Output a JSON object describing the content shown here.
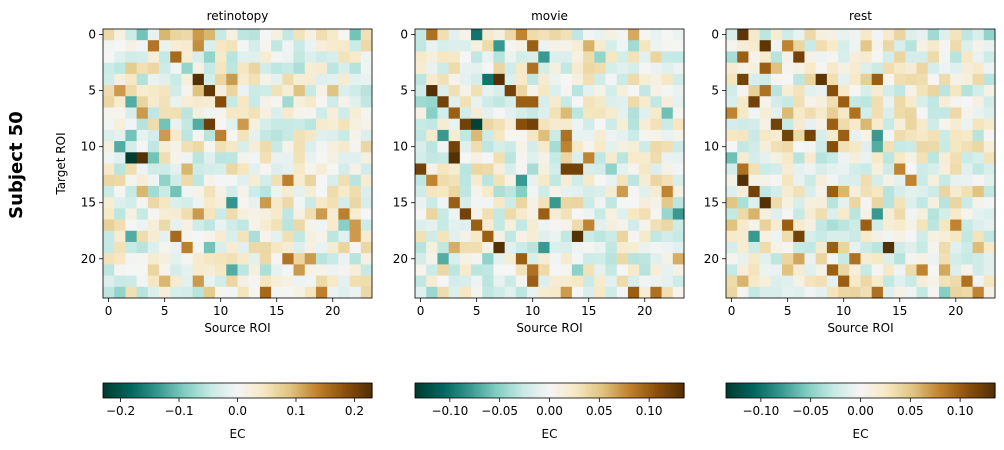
{
  "figure": {
    "row_label": "Subject 50"
  },
  "chart_data": [
    {
      "type": "heatmap",
      "title": "retinotopy",
      "xlabel": "Source ROI",
      "ylabel": "Target ROI",
      "size": 24,
      "xticks": [
        0,
        5,
        10,
        15,
        20
      ],
      "yticks": [
        0,
        5,
        10,
        15,
        20
      ],
      "colorbar": {
        "label": "EC",
        "vmin": -0.23,
        "vmax": 0.23,
        "ticks": [
          -0.2,
          -0.1,
          0.0,
          0.1,
          0.2
        ],
        "tick_labels": [
          "−0.2",
          "−0.1",
          "0.0",
          "0.1",
          "0.2"
        ]
      },
      "seed": 50101,
      "amplitude": 0.23,
      "cells": [
        {
          "r": 0,
          "c": 3,
          "v": -0.1
        },
        {
          "r": 0,
          "c": 5,
          "v": 0.1
        },
        {
          "r": 0,
          "c": 8,
          "v": 0.12
        },
        {
          "r": 0,
          "c": 9,
          "v": 0.1
        },
        {
          "r": 0,
          "c": 22,
          "v": -0.1
        },
        {
          "r": 1,
          "c": 4,
          "v": 0.15
        },
        {
          "r": 1,
          "c": 8,
          "v": 0.13
        },
        {
          "r": 2,
          "c": 6,
          "v": 0.16
        },
        {
          "r": 2,
          "c": 9,
          "v": -0.08
        },
        {
          "r": 3,
          "c": 2,
          "v": 0.08
        },
        {
          "r": 3,
          "c": 7,
          "v": -0.08
        },
        {
          "r": 4,
          "c": 8,
          "v": 0.23
        },
        {
          "r": 4,
          "c": 11,
          "v": 0.12
        },
        {
          "r": 5,
          "c": 1,
          "v": 0.12
        },
        {
          "r": 5,
          "c": 9,
          "v": 0.22
        },
        {
          "r": 5,
          "c": 0,
          "v": 0.06
        },
        {
          "r": 6,
          "c": 2,
          "v": -0.12
        },
        {
          "r": 6,
          "c": 10,
          "v": 0.19
        },
        {
          "r": 7,
          "c": 3,
          "v": 0.12
        },
        {
          "r": 8,
          "c": 5,
          "v": -0.1
        },
        {
          "r": 8,
          "c": 9,
          "v": 0.21
        },
        {
          "r": 8,
          "c": 8,
          "v": -0.12
        },
        {
          "r": 8,
          "c": 12,
          "v": 0.12
        },
        {
          "r": 9,
          "c": 2,
          "v": -0.1
        },
        {
          "r": 9,
          "c": 5,
          "v": 0.12
        },
        {
          "r": 9,
          "c": 10,
          "v": 0.14
        },
        {
          "r": 10,
          "c": 1,
          "v": -0.12
        },
        {
          "r": 11,
          "c": 2,
          "v": -0.23
        },
        {
          "r": 11,
          "c": 3,
          "v": 0.23
        },
        {
          "r": 11,
          "c": 4,
          "v": -0.1
        },
        {
          "r": 12,
          "c": 7,
          "v": 0.1
        },
        {
          "r": 13,
          "c": 16,
          "v": 0.14
        },
        {
          "r": 14,
          "c": 3,
          "v": 0.1
        },
        {
          "r": 14,
          "c": 6,
          "v": -0.1
        },
        {
          "r": 15,
          "c": 11,
          "v": -0.14
        },
        {
          "r": 15,
          "c": 14,
          "v": 0.12
        },
        {
          "r": 16,
          "c": 8,
          "v": 0.12
        },
        {
          "r": 16,
          "c": 19,
          "v": 0.12
        },
        {
          "r": 16,
          "c": 21,
          "v": 0.14
        },
        {
          "r": 17,
          "c": 22,
          "v": 0.12
        },
        {
          "r": 18,
          "c": 2,
          "v": -0.12
        },
        {
          "r": 18,
          "c": 6,
          "v": 0.16
        },
        {
          "r": 18,
          "c": 22,
          "v": 0.12
        },
        {
          "r": 19,
          "c": 7,
          "v": 0.14
        },
        {
          "r": 19,
          "c": 9,
          "v": -0.1
        },
        {
          "r": 20,
          "c": 16,
          "v": 0.15
        },
        {
          "r": 20,
          "c": 18,
          "v": 0.12
        },
        {
          "r": 21,
          "c": 11,
          "v": -0.12
        },
        {
          "r": 21,
          "c": 17,
          "v": 0.12
        },
        {
          "r": 22,
          "c": 5,
          "v": 0.1
        },
        {
          "r": 22,
          "c": 8,
          "v": 0.12
        },
        {
          "r": 23,
          "c": 14,
          "v": 0.16
        },
        {
          "r": 23,
          "c": 19,
          "v": 0.14
        },
        {
          "r": 23,
          "c": 1,
          "v": -0.08
        }
      ]
    },
    {
      "type": "heatmap",
      "title": "movie",
      "xlabel": "Source ROI",
      "ylabel": "",
      "size": 24,
      "xticks": [
        0,
        5,
        10,
        15,
        20
      ],
      "yticks": [
        0,
        5,
        10,
        15,
        20
      ],
      "colorbar": {
        "label": "EC",
        "vmin": -0.135,
        "vmax": 0.135,
        "ticks": [
          -0.1,
          -0.05,
          0.0,
          0.05,
          0.1
        ],
        "tick_labels": [
          "−0.10",
          "−0.05",
          "0.00",
          "0.05",
          "0.10"
        ]
      },
      "seed": 50202,
      "amplitude": 0.135,
      "cells": [
        {
          "r": 0,
          "c": 1,
          "v": 0.09
        },
        {
          "r": 0,
          "c": 5,
          "v": -0.1
        },
        {
          "r": 0,
          "c": 9,
          "v": 0.08
        },
        {
          "r": 1,
          "c": 7,
          "v": -0.08
        },
        {
          "r": 1,
          "c": 10,
          "v": 0.1
        },
        {
          "r": 2,
          "c": 11,
          "v": -0.08
        },
        {
          "r": 3,
          "c": 10,
          "v": 0.09
        },
        {
          "r": 4,
          "c": 6,
          "v": -0.1
        },
        {
          "r": 4,
          "c": 7,
          "v": 0.135
        },
        {
          "r": 5,
          "c": 1,
          "v": 0.135
        },
        {
          "r": 5,
          "c": 8,
          "v": 0.12
        },
        {
          "r": 6,
          "c": 2,
          "v": 0.12
        },
        {
          "r": 6,
          "c": 9,
          "v": 0.1
        },
        {
          "r": 6,
          "c": 10,
          "v": 0.1
        },
        {
          "r": 7,
          "c": 3,
          "v": 0.1
        },
        {
          "r": 7,
          "c": 22,
          "v": -0.06
        },
        {
          "r": 8,
          "c": 4,
          "v": 0.12
        },
        {
          "r": 8,
          "c": 5,
          "v": -0.13
        },
        {
          "r": 8,
          "c": 9,
          "v": 0.11
        },
        {
          "r": 8,
          "c": 10,
          "v": 0.12
        },
        {
          "r": 9,
          "c": 2,
          "v": -0.08
        },
        {
          "r": 9,
          "c": 13,
          "v": 0.09
        },
        {
          "r": 10,
          "c": 3,
          "v": 0.12
        },
        {
          "r": 10,
          "c": 13,
          "v": 0.08
        },
        {
          "r": 11,
          "c": 3,
          "v": 0.135
        },
        {
          "r": 11,
          "c": 15,
          "v": 0.08
        },
        {
          "r": 12,
          "c": 0,
          "v": 0.12
        },
        {
          "r": 12,
          "c": 13,
          "v": 0.12
        },
        {
          "r": 12,
          "c": 14,
          "v": 0.12
        },
        {
          "r": 13,
          "c": 1,
          "v": 0.08
        },
        {
          "r": 13,
          "c": 9,
          "v": -0.08
        },
        {
          "r": 14,
          "c": 22,
          "v": 0.08
        },
        {
          "r": 14,
          "c": 18,
          "v": 0.07
        },
        {
          "r": 15,
          "c": 3,
          "v": 0.1
        },
        {
          "r": 15,
          "c": 12,
          "v": -0.08
        },
        {
          "r": 16,
          "c": 4,
          "v": 0.12
        },
        {
          "r": 16,
          "c": 11,
          "v": 0.1
        },
        {
          "r": 16,
          "c": 23,
          "v": -0.08
        },
        {
          "r": 17,
          "c": 5,
          "v": 0.1
        },
        {
          "r": 17,
          "c": 15,
          "v": 0.08
        },
        {
          "r": 18,
          "c": 6,
          "v": 0.1
        },
        {
          "r": 18,
          "c": 14,
          "v": 0.135
        },
        {
          "r": 19,
          "c": 7,
          "v": 0.135
        },
        {
          "r": 19,
          "c": 11,
          "v": -0.08
        },
        {
          "r": 20,
          "c": 9,
          "v": 0.1
        },
        {
          "r": 20,
          "c": 2,
          "v": -0.07
        },
        {
          "r": 21,
          "c": 10,
          "v": 0.09
        },
        {
          "r": 22,
          "c": 10,
          "v": 0.1
        },
        {
          "r": 23,
          "c": 19,
          "v": 0.1
        },
        {
          "r": 23,
          "c": 21,
          "v": 0.09
        },
        {
          "r": 23,
          "c": 13,
          "v": 0.07
        }
      ]
    },
    {
      "type": "heatmap",
      "title": "rest",
      "xlabel": "Source ROI",
      "ylabel": "",
      "size": 24,
      "xticks": [
        0,
        5,
        10,
        15,
        20
      ],
      "yticks": [
        0,
        5,
        10,
        15,
        20
      ],
      "colorbar": {
        "label": "EC",
        "vmin": -0.135,
        "vmax": 0.135,
        "ticks": [
          -0.1,
          -0.05,
          0.0,
          0.05,
          0.1
        ],
        "tick_labels": [
          "−0.10",
          "−0.05",
          "0.00",
          "0.05",
          "0.10"
        ]
      },
      "seed": 50303,
      "amplitude": 0.135,
      "cells": [
        {
          "r": 0,
          "c": 1,
          "v": 0.13
        },
        {
          "r": 1,
          "c": 3,
          "v": 0.13
        },
        {
          "r": 1,
          "c": 5,
          "v": 0.08
        },
        {
          "r": 2,
          "c": 1,
          "v": 0.1
        },
        {
          "r": 2,
          "c": 6,
          "v": 0.12
        },
        {
          "r": 3,
          "c": 3,
          "v": 0.1
        },
        {
          "r": 4,
          "c": 1,
          "v": 0.12
        },
        {
          "r": 4,
          "c": 8,
          "v": 0.13
        },
        {
          "r": 4,
          "c": 13,
          "v": 0.1
        },
        {
          "r": 5,
          "c": 3,
          "v": 0.09
        },
        {
          "r": 5,
          "c": 9,
          "v": 0.11
        },
        {
          "r": 6,
          "c": 2,
          "v": 0.12
        },
        {
          "r": 6,
          "c": 10,
          "v": 0.1
        },
        {
          "r": 7,
          "c": 0,
          "v": 0.08
        },
        {
          "r": 7,
          "c": 11,
          "v": 0.09
        },
        {
          "r": 8,
          "c": 4,
          "v": 0.12
        },
        {
          "r": 8,
          "c": 9,
          "v": 0.1
        },
        {
          "r": 9,
          "c": 5,
          "v": 0.12
        },
        {
          "r": 9,
          "c": 7,
          "v": 0.12
        },
        {
          "r": 9,
          "c": 10,
          "v": 0.1
        },
        {
          "r": 9,
          "c": 13,
          "v": -0.08
        },
        {
          "r": 10,
          "c": 9,
          "v": 0.11
        },
        {
          "r": 10,
          "c": 13,
          "v": -0.07
        },
        {
          "r": 11,
          "c": 0,
          "v": -0.06
        },
        {
          "r": 12,
          "c": 1,
          "v": 0.09
        },
        {
          "r": 12,
          "c": 15,
          "v": 0.08
        },
        {
          "r": 13,
          "c": 1,
          "v": 0.135
        },
        {
          "r": 13,
          "c": 16,
          "v": 0.08
        },
        {
          "r": 14,
          "c": 2,
          "v": 0.12
        },
        {
          "r": 14,
          "c": 9,
          "v": 0.1
        },
        {
          "r": 15,
          "c": 3,
          "v": 0.135
        },
        {
          "r": 16,
          "c": 13,
          "v": -0.08
        },
        {
          "r": 16,
          "c": 2,
          "v": 0.06
        },
        {
          "r": 17,
          "c": 5,
          "v": 0.1
        },
        {
          "r": 17,
          "c": 12,
          "v": 0.1
        },
        {
          "r": 17,
          "c": 20,
          "v": 0.08
        },
        {
          "r": 18,
          "c": 6,
          "v": 0.12
        },
        {
          "r": 18,
          "c": 2,
          "v": -0.08
        },
        {
          "r": 19,
          "c": 14,
          "v": 0.135
        },
        {
          "r": 19,
          "c": 9,
          "v": 0.1
        },
        {
          "r": 20,
          "c": 11,
          "v": 0.09
        },
        {
          "r": 21,
          "c": 9,
          "v": 0.1
        },
        {
          "r": 21,
          "c": 17,
          "v": 0.08
        },
        {
          "r": 22,
          "c": 10,
          "v": 0.1
        },
        {
          "r": 22,
          "c": 21,
          "v": 0.09
        },
        {
          "r": 23,
          "c": 13,
          "v": 0.09
        },
        {
          "r": 23,
          "c": 22,
          "v": 0.08
        }
      ]
    }
  ]
}
